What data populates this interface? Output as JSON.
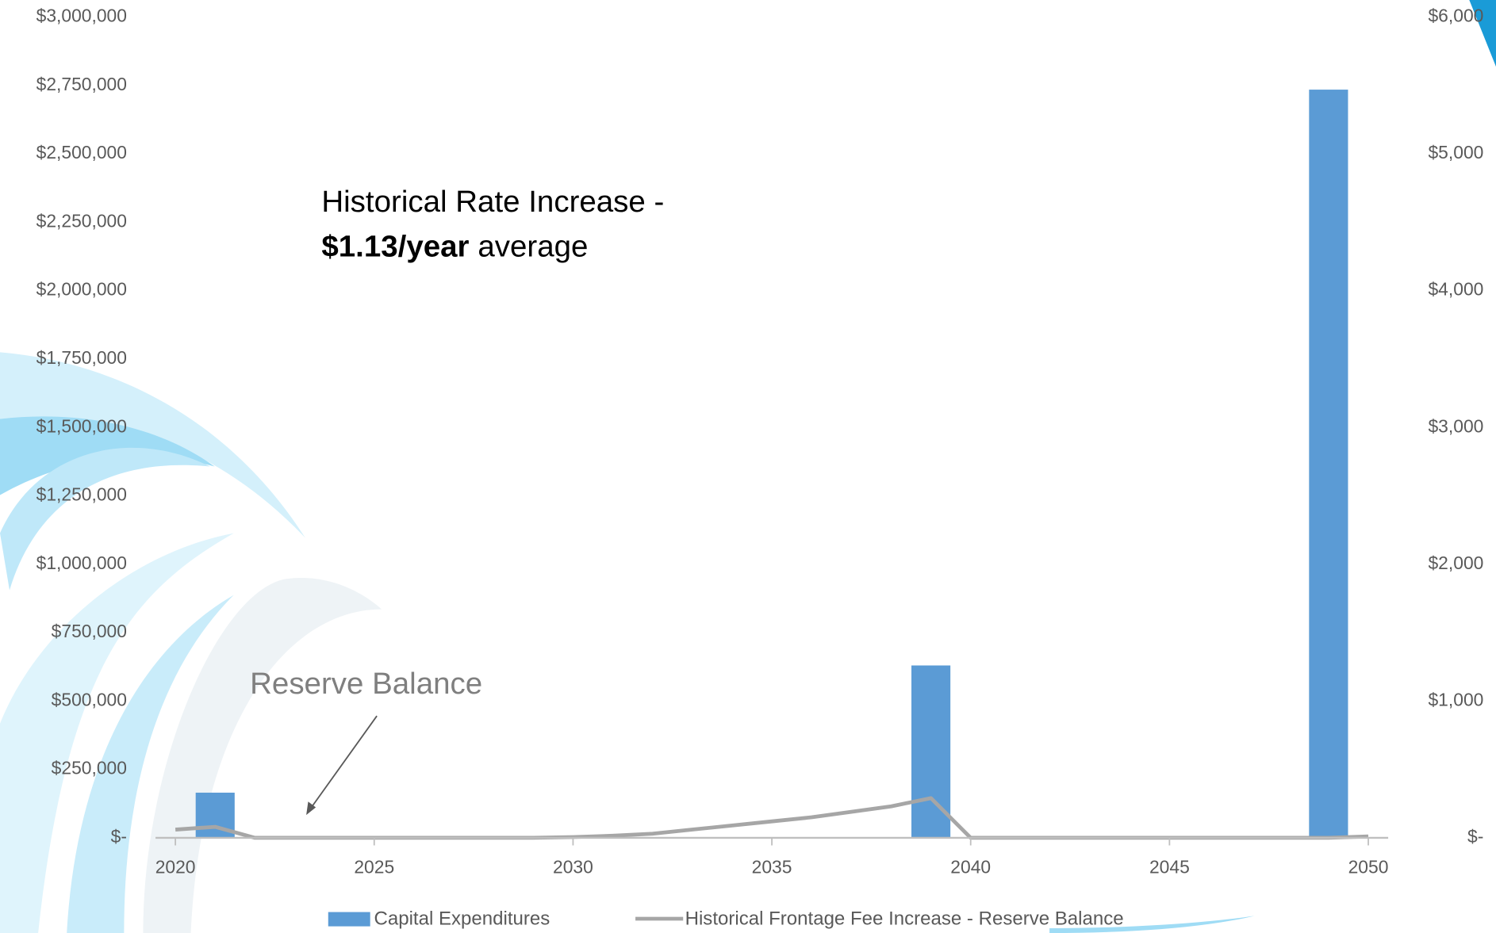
{
  "chart_data": {
    "type": "bar-line",
    "x": [
      2020,
      2021,
      2022,
      2023,
      2024,
      2025,
      2026,
      2027,
      2028,
      2029,
      2030,
      2031,
      2032,
      2033,
      2034,
      2035,
      2036,
      2037,
      2038,
      2039,
      2040,
      2041,
      2042,
      2043,
      2044,
      2045,
      2046,
      2047,
      2048,
      2049,
      2050
    ],
    "xlim": [
      2019.5,
      2050.5
    ],
    "xticks": [
      2020,
      2025,
      2030,
      2035,
      2040,
      2045,
      2050
    ],
    "ylim": [
      0,
      3000000
    ],
    "yticks": [
      {
        "value": 0,
        "label": "$-"
      },
      {
        "value": 250000,
        "label": "$250,000"
      },
      {
        "value": 500000,
        "label": "$500,000"
      },
      {
        "value": 750000,
        "label": "$750,000"
      },
      {
        "value": 1000000,
        "label": "$1,000,000"
      },
      {
        "value": 1250000,
        "label": "$1,250,000"
      },
      {
        "value": 1500000,
        "label": "$1,500,000"
      },
      {
        "value": 1750000,
        "label": "$1,750,000"
      },
      {
        "value": 2000000,
        "label": "$2,000,000"
      },
      {
        "value": 2250000,
        "label": "$2,250,000"
      },
      {
        "value": 2500000,
        "label": "$2,500,000"
      },
      {
        "value": 2750000,
        "label": "$2,750,000"
      },
      {
        "value": 3000000,
        "label": "$3,000,000"
      }
    ],
    "y2lim": [
      0,
      6000
    ],
    "y2ticks": [
      {
        "value": 0,
        "label": "$-"
      },
      {
        "value": 1000,
        "label": "$1,000"
      },
      {
        "value": 2000,
        "label": "$2,000"
      },
      {
        "value": 3000,
        "label": "$3,000"
      },
      {
        "value": 4000,
        "label": "$4,000"
      },
      {
        "value": 5000,
        "label": "$5,000"
      },
      {
        "value": 6000,
        "label": "$6,000"
      }
    ],
    "series": [
      {
        "name": "Capital Expenditures",
        "kind": "bar",
        "color": "#5b9bd5",
        "values": [
          0,
          165000,
          0,
          0,
          0,
          0,
          0,
          0,
          0,
          0,
          0,
          0,
          0,
          0,
          0,
          0,
          0,
          0,
          0,
          630000,
          0,
          0,
          0,
          0,
          0,
          0,
          0,
          0,
          0,
          2735000,
          0
        ]
      },
      {
        "name": "Historical Frontage Fee Increase - Reserve Balance",
        "kind": "line",
        "axis": "y2",
        "color": "#a6a6a6",
        "values": [
          60,
          80,
          0,
          0,
          0,
          0,
          0,
          0,
          0,
          0,
          5,
          15,
          30,
          60,
          90,
          120,
          150,
          190,
          230,
          290,
          0,
          0,
          0,
          0,
          0,
          0,
          0,
          0,
          0,
          0,
          10
        ]
      }
    ],
    "annotations": {
      "rate_line1": "Historical Rate Increase -",
      "rate_bold": "$1.13/year",
      "rate_rest": "average",
      "reserve": "Reserve Balance"
    }
  }
}
